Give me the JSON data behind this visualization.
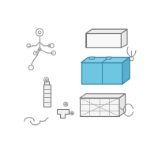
{
  "bg_color": "#ffffff",
  "highlight_color": "#6ec6e0",
  "highlight_edge": "#3a8aaa",
  "highlight_side": "#5ab0cc",
  "highlight_top": "#80d0e8",
  "line_color": "#999999",
  "line_color2": "#777777",
  "figsize": [
    2.0,
    2.0
  ],
  "dpi": 100
}
